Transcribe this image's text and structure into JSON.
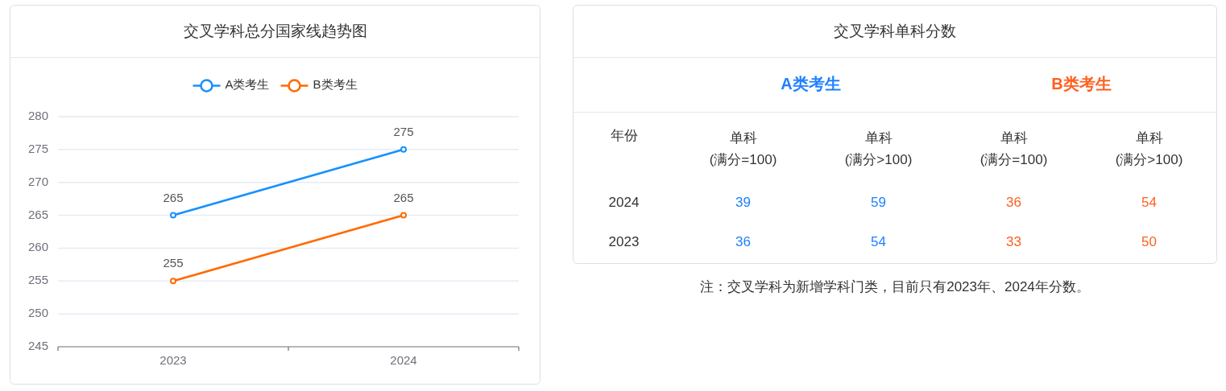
{
  "chart_data": [
    {
      "type": "line",
      "title": "交叉学科总分国家线趋势图",
      "categories": [
        "2023",
        "2024"
      ],
      "series": [
        {
          "name": "A类考生",
          "color": "#1890ff",
          "values": [
            265,
            275
          ]
        },
        {
          "name": "B类考生",
          "color": "#ff6a00",
          "values": [
            255,
            265
          ]
        }
      ],
      "ylim": [
        245,
        280
      ],
      "yticks": [
        245,
        250,
        255,
        260,
        265,
        270,
        275,
        280
      ],
      "grid": "y",
      "legend": "top",
      "marker": "circle",
      "data_labels": true
    },
    {
      "type": "other",
      "title": "交叉学科单科分数",
      "ylabel": "年份",
      "categories": [
        "单科\n(满分=100)",
        "单科\n(满分>100)",
        "单科\n(满分=100)",
        "单科\n(满分>100)"
      ],
      "series": [
        {
          "name": "2024",
          "values": [
            39,
            59,
            36,
            54
          ],
          "colors": [
            "#1e80ff",
            "#1e80ff",
            "#ff5f1f",
            "#ff5f1f"
          ]
        },
        {
          "name": "2023",
          "values": [
            36,
            54,
            33,
            50
          ],
          "colors": [
            "#1e80ff",
            "#1e80ff",
            "#ff5f1f",
            "#ff5f1f"
          ]
        }
      ],
      "data_labels": true,
      "annotations": [
        "A类考生",
        "B类考生",
        "注：交叉学科为新增学科门类，目前只有2023年、2024年分数。"
      ]
    }
  ]
}
